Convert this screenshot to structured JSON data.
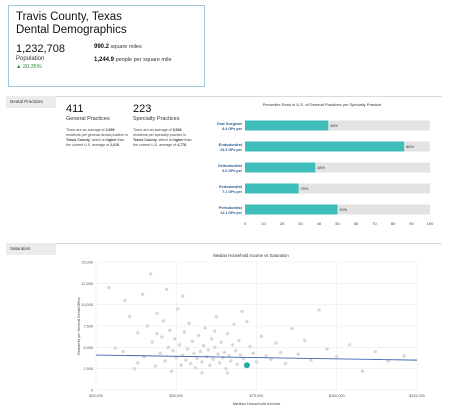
{
  "header": {
    "title_line1": "Travis County, Texas",
    "title_line2": "Dental Demographics",
    "population": "1,232,708",
    "population_label": "Population",
    "population_change": "▲ 20.35%",
    "area_value": "990.2",
    "area_unit": "square miles",
    "density_value": "1,244.9",
    "density_unit": "people per square mile"
  },
  "dental_practices": {
    "section_label": "Dental Practices",
    "general": {
      "count": "411",
      "label": "General Practices",
      "desc_a": "There are an average of",
      "desc_b": "2,999",
      "desc_c": "residents per general dental practice in",
      "desc_d": "Travis County",
      "desc_e": ", which is",
      "desc_f": "higher",
      "desc_g": "than the current U.S. average of",
      "desc_h": "2,616",
      "desc_i": "."
    },
    "specialty": {
      "count": "223",
      "label": "Specialty Practices",
      "desc_a": "There are an average of",
      "desc_b": "5,528",
      "desc_c": "residents per specialty practice in",
      "desc_d": "Travis County",
      "desc_e": ", which is",
      "desc_f": "higher",
      "desc_g": "than the current U.S. average of",
      "desc_h": "4,778",
      "desc_i": "."
    }
  },
  "saturation": {
    "section_label": "Saturation"
  },
  "chart_data": [
    {
      "type": "bar",
      "orientation": "horizontal",
      "title": "Percentile Rank in U.S. of General Practices per Specialty Practice",
      "categories": [
        {
          "name": "Oral Surgeon",
          "sub": "8.4 GPs per"
        },
        {
          "name": "Endodontist",
          "sub": "24.3 GPs per"
        },
        {
          "name": "Orthodontist",
          "sub": "6.6 GPs per"
        },
        {
          "name": "Pedodontist",
          "sub": "7.1 GPs per"
        },
        {
          "name": "Periodontist",
          "sub": "12.1 GPs per"
        }
      ],
      "values": [
        45,
        86,
        38,
        29,
        50
      ],
      "value_labels": [
        "45%",
        "86%",
        "38%",
        "29%",
        "50%"
      ],
      "xlim": [
        0,
        100
      ],
      "xticks": [
        "0",
        "10",
        "20",
        "30",
        "40",
        "50",
        "60",
        "70",
        "80",
        "90",
        "100"
      ],
      "bar_color": "#3fbdbb",
      "track_color": "#e3e3e3"
    },
    {
      "type": "scatter",
      "title": "Median Household Income vs Saturation",
      "xlabel": "Median Household Income",
      "ylabel": "Residents per General Dental Office",
      "xlim": [
        25000,
        125000
      ],
      "ylim": [
        0,
        15000
      ],
      "xticks": [
        "$25,000",
        "$50,000",
        "$75,000",
        "$100,000",
        "$125,000"
      ],
      "yticks": [
        "0",
        "2,500",
        "5,000",
        "7,500",
        "10,000",
        "12,500",
        "15,000"
      ],
      "point_color": "#d8d8d8",
      "highlight_color": "#2aa8a6",
      "trend_color": "#3c63b0",
      "trend": {
        "x": [
          25000,
          125000
        ],
        "y": [
          4100,
          3500
        ]
      },
      "highlight": {
        "x": 72000,
        "y": 2900
      },
      "points": [
        {
          "x": 29000,
          "y": 12000
        },
        {
          "x": 31000,
          "y": 4900
        },
        {
          "x": 33500,
          "y": 4500
        },
        {
          "x": 34000,
          "y": 10500
        },
        {
          "x": 35500,
          "y": 8600
        },
        {
          "x": 37000,
          "y": 2500
        },
        {
          "x": 38000,
          "y": 6700
        },
        {
          "x": 39500,
          "y": 11200
        },
        {
          "x": 40000,
          "y": 3900
        },
        {
          "x": 41000,
          "y": 7500
        },
        {
          "x": 42000,
          "y": 13600
        },
        {
          "x": 42500,
          "y": 5600
        },
        {
          "x": 43500,
          "y": 2800
        },
        {
          "x": 44000,
          "y": 9000
        },
        {
          "x": 45000,
          "y": 4300
        },
        {
          "x": 45500,
          "y": 6200
        },
        {
          "x": 46000,
          "y": 8100
        },
        {
          "x": 46500,
          "y": 3400
        },
        {
          "x": 47000,
          "y": 11800
        },
        {
          "x": 47500,
          "y": 5000
        },
        {
          "x": 48000,
          "y": 7000
        },
        {
          "x": 48500,
          "y": 2200
        },
        {
          "x": 49000,
          "y": 4600
        },
        {
          "x": 49500,
          "y": 6000
        },
        {
          "x": 50000,
          "y": 3800
        },
        {
          "x": 50500,
          "y": 9500
        },
        {
          "x": 51000,
          "y": 5300
        },
        {
          "x": 51500,
          "y": 2900
        },
        {
          "x": 52000,
          "y": 4100
        },
        {
          "x": 52500,
          "y": 6800
        },
        {
          "x": 53000,
          "y": 3500
        },
        {
          "x": 53500,
          "y": 4800
        },
        {
          "x": 54000,
          "y": 7800
        },
        {
          "x": 54500,
          "y": 3100
        },
        {
          "x": 55000,
          "y": 5700
        },
        {
          "x": 55500,
          "y": 4300
        },
        {
          "x": 56000,
          "y": 2600
        },
        {
          "x": 56500,
          "y": 3700
        },
        {
          "x": 57000,
          "y": 6400
        },
        {
          "x": 57500,
          "y": 4500
        },
        {
          "x": 58000,
          "y": 3300
        },
        {
          "x": 58500,
          "y": 5200
        },
        {
          "x": 59000,
          "y": 7300
        },
        {
          "x": 59500,
          "y": 3900
        },
        {
          "x": 60000,
          "y": 4700
        },
        {
          "x": 60500,
          "y": 2900
        },
        {
          "x": 61000,
          "y": 6000
        },
        {
          "x": 61500,
          "y": 3600
        },
        {
          "x": 62000,
          "y": 5000
        },
        {
          "x": 62500,
          "y": 8600
        },
        {
          "x": 63000,
          "y": 4200
        },
        {
          "x": 63500,
          "y": 3200
        },
        {
          "x": 64000,
          "y": 5600
        },
        {
          "x": 64500,
          "y": 3800
        },
        {
          "x": 65000,
          "y": 4400
        },
        {
          "x": 65500,
          "y": 2500
        },
        {
          "x": 66000,
          "y": 6600
        },
        {
          "x": 66500,
          "y": 4000
        },
        {
          "x": 67000,
          "y": 3400
        },
        {
          "x": 67500,
          "y": 5300
        },
        {
          "x": 68000,
          "y": 7700
        },
        {
          "x": 68500,
          "y": 4600
        },
        {
          "x": 69000,
          "y": 3000
        },
        {
          "x": 69500,
          "y": 5800
        },
        {
          "x": 70000,
          "y": 4100
        },
        {
          "x": 70500,
          "y": 9200
        },
        {
          "x": 71000,
          "y": 3700
        },
        {
          "x": 73000,
          "y": 5100
        },
        {
          "x": 74000,
          "y": 4300
        },
        {
          "x": 75000,
          "y": 3300
        },
        {
          "x": 76500,
          "y": 6300
        },
        {
          "x": 78000,
          "y": 4000
        },
        {
          "x": 79500,
          "y": 3600
        },
        {
          "x": 81000,
          "y": 5500
        },
        {
          "x": 82500,
          "y": 4400
        },
        {
          "x": 84000,
          "y": 3100
        },
        {
          "x": 86000,
          "y": 7200
        },
        {
          "x": 88000,
          "y": 4200
        },
        {
          "x": 90000,
          "y": 5800
        },
        {
          "x": 92000,
          "y": 3500
        },
        {
          "x": 94500,
          "y": 9400
        },
        {
          "x": 97000,
          "y": 4800
        },
        {
          "x": 100000,
          "y": 3900
        },
        {
          "x": 104000,
          "y": 5300
        },
        {
          "x": 108000,
          "y": 2200
        },
        {
          "x": 112000,
          "y": 4500
        },
        {
          "x": 116000,
          "y": 3400
        },
        {
          "x": 121000,
          "y": 4000
        },
        {
          "x": 38000,
          "y": 3200
        },
        {
          "x": 44000,
          "y": 6600
        },
        {
          "x": 52000,
          "y": 11000
        },
        {
          "x": 58000,
          "y": 2000
        },
        {
          "x": 62000,
          "y": 6900
        },
        {
          "x": 66000,
          "y": 2000
        },
        {
          "x": 72000,
          "y": 8000
        }
      ]
    }
  ]
}
